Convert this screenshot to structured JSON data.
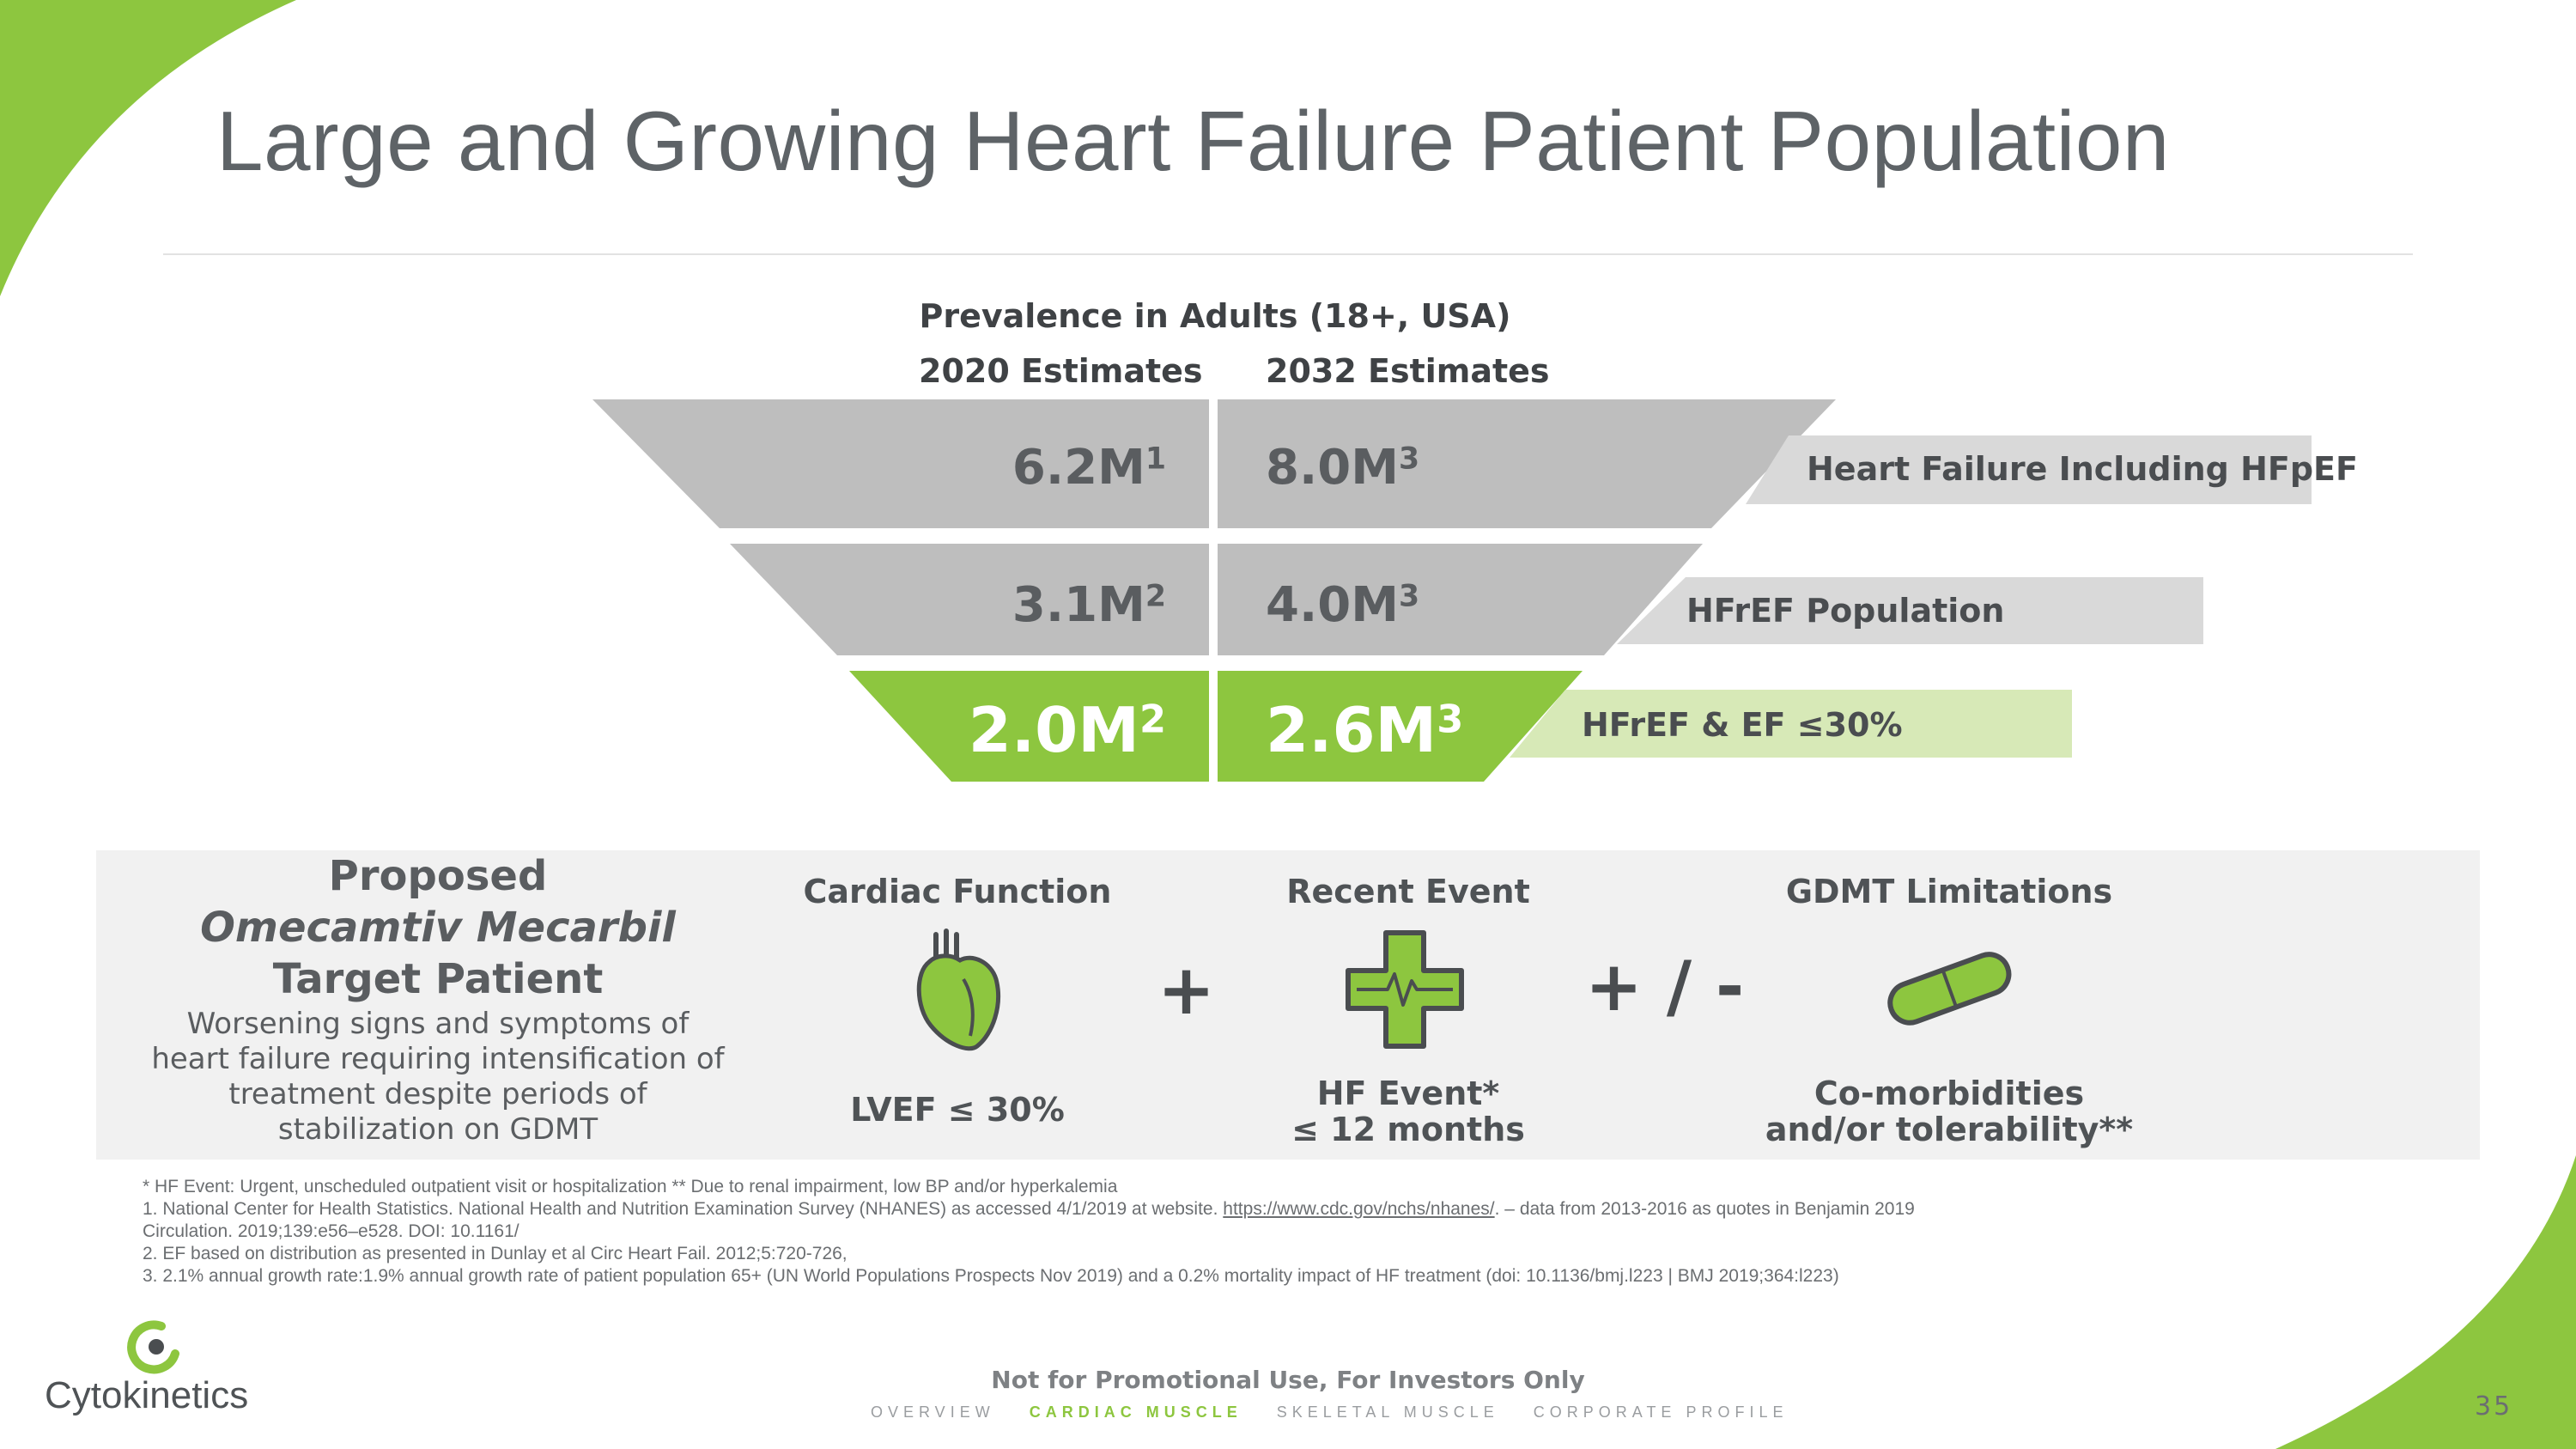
{
  "colors": {
    "green": "#8dc63f",
    "gray": "#bfbfbf",
    "lightgray": "#d9d9d9",
    "lightgreen": "#d7e9b7",
    "text": "#5e6367"
  },
  "title": "Large and Growing Heart Failure Patient Population",
  "chart": {
    "heading": "Prevalence in Adults (18+, USA)",
    "col_2020": "2020 Estimates",
    "col_2032": "2032 Estimates",
    "rows": [
      {
        "v2020": "6.2M",
        "s2020": "1",
        "v2032": "8.0M",
        "s2032": "3",
        "label": "Heart Failure Including HFpEF"
      },
      {
        "v2020": "3.1M",
        "s2020": "2",
        "v2032": "4.0M",
        "s2032": "3",
        "label": "HFrEF Population"
      },
      {
        "v2020": "2.0M",
        "s2020": "2",
        "v2032": "2.6M",
        "s2032": "3",
        "label": "HFrEF & EF ≤30%"
      }
    ]
  },
  "target": {
    "line1": "Proposed",
    "line2": "Omecamtiv Mecarbil",
    "line3": "Target Patient",
    "desc": [
      "Worsening signs and symptoms of",
      "heart failure requiring intensification of",
      "treatment despite periods of",
      "stabilization on GDMT"
    ]
  },
  "criteria": {
    "cardiac": {
      "header": "Cardiac Function",
      "caption": "LVEF ≤ 30%",
      "icon": "heart-icon"
    },
    "plus1": "+",
    "event": {
      "header": "Recent Event",
      "caption1": "HF Event*",
      "caption2": "≤ 12 months",
      "icon": "medical-cross-icon"
    },
    "plus2": "+ / -",
    "gdmt": {
      "header": "GDMT Limitations",
      "caption1": "Co-morbidities",
      "caption2": "and/or tolerability**",
      "icon": "pill-icon"
    }
  },
  "footnotes": {
    "star": "* HF Event: Urgent, unscheduled outpatient visit or hospitalization    ** Due to renal impairment, low BP and/or hyperkalemia",
    "n1a": "1. National Center for Health Statistics. National Health and Nutrition Examination Survey (NHANES) as accessed 4/1/2019 at website.",
    "n1link": "https://www.cdc.gov/nchs/nhanes/",
    "n1b": ". – data from 2013-2016 as quotes in Benjamin 2019",
    "n1c": "Circulation. 2019;139:e56–e528. DOI: 10.1161/",
    "n2": "2. EF based on distribution as presented in Dunlay et al Circ Heart Fail. 2012;5:720-726,",
    "n3": "3. 2.1% annual growth rate:1.9% annual growth rate of patient population 65+ (UN World Populations Prospects Nov 2019) and a 0.2% mortality impact of HF treatment (doi: 10.1136/bmj.l223 | BMJ 2019;364:l223)"
  },
  "footer": {
    "logo_text": "Cytokinetics",
    "disclaimer": "Not for Promotional Use, For Investors Only",
    "nav": [
      "OVERVIEW",
      "CARDIAC MUSCLE",
      "SKELETAL MUSCLE",
      "CORPORATE PROFILE"
    ],
    "active_nav": "CARDIAC MUSCLE",
    "page": "35"
  }
}
